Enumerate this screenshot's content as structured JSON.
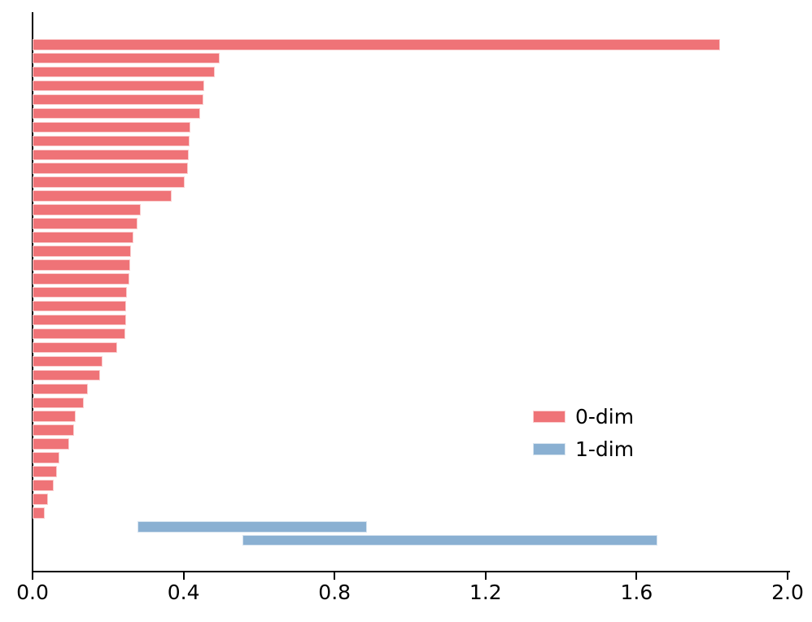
{
  "chart_data": {
    "type": "bar",
    "variant": "persistence-barcode",
    "orientation": "horizontal",
    "title": "",
    "xlabel": "",
    "ylabel": "",
    "xlim": [
      0.0,
      2.0
    ],
    "xticks": [
      0.0,
      0.4,
      0.8,
      1.2,
      1.6,
      2.0
    ],
    "xtick_labels": [
      "0.0",
      "0.4",
      "0.8",
      "1.2",
      "1.6",
      "2.0"
    ],
    "grid": false,
    "legend": {
      "position": "center-right",
      "frame": false,
      "entries": [
        {
          "label": "0-dim",
          "color": "#ef7377"
        },
        {
          "label": "1-dim",
          "color": "#8ab0d2"
        }
      ]
    },
    "axis_color": "#000000",
    "background_color": "#ffffff",
    "series": [
      {
        "name": "0-dim",
        "color": "#ef7377",
        "intervals": [
          [
            0,
            1.821
          ],
          [
            0,
            0.496
          ],
          [
            0,
            0.483
          ],
          [
            0,
            0.455
          ],
          [
            0,
            0.453
          ],
          [
            0,
            0.445
          ],
          [
            0,
            0.418
          ],
          [
            0,
            0.417
          ],
          [
            0,
            0.413
          ],
          [
            0,
            0.412
          ],
          [
            0,
            0.402
          ],
          [
            0,
            0.369
          ],
          [
            0,
            0.286
          ],
          [
            0,
            0.277
          ],
          [
            0,
            0.268
          ],
          [
            0,
            0.261
          ],
          [
            0,
            0.259
          ],
          [
            0,
            0.256
          ],
          [
            0,
            0.249
          ],
          [
            0,
            0.248
          ],
          [
            0,
            0.247
          ],
          [
            0,
            0.246
          ],
          [
            0,
            0.225
          ],
          [
            0,
            0.186
          ],
          [
            0,
            0.179
          ],
          [
            0,
            0.147
          ],
          [
            0,
            0.136
          ],
          [
            0,
            0.115
          ],
          [
            0,
            0.11
          ],
          [
            0,
            0.097
          ],
          [
            0,
            0.072
          ],
          [
            0,
            0.064
          ],
          [
            0,
            0.056
          ],
          [
            0,
            0.04
          ],
          [
            0,
            0.033
          ]
        ]
      },
      {
        "name": "1-dim",
        "color": "#8ab0d2",
        "intervals": [
          [
            0.279,
            0.885
          ],
          [
            0.557,
            1.655
          ]
        ]
      }
    ]
  }
}
